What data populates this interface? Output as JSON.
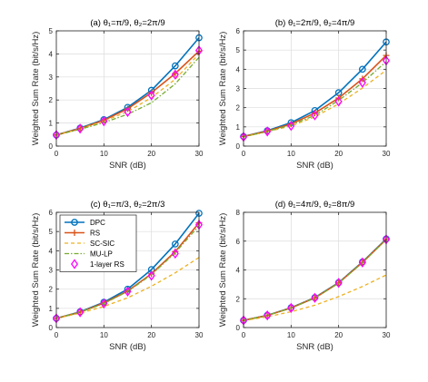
{
  "colors": {
    "dpc": "#0072BD",
    "rs": "#D95319",
    "sc_sic": "#EDB120",
    "mu_lp": "#77AC30",
    "one_layer_rs": "#FF00FF"
  },
  "legend": {
    "panel_index": 2,
    "placement": "top-left",
    "entries": [
      "DPC",
      "RS",
      "SC-SIC",
      "MU-LP",
      "1-layer RS"
    ]
  },
  "chart_data": [
    {
      "type": "line",
      "title": "(a) θ₁=π/9, θ₂=2π/9",
      "xlabel": "SNR (dB)",
      "ylabel": "Weighted Sum Rate (bit/s/Hz)",
      "xlim": [
        0,
        30
      ],
      "ylim": [
        0,
        5
      ],
      "xticks": [
        0,
        10,
        20,
        30
      ],
      "yticks": [
        0,
        1,
        2,
        3,
        4,
        5
      ],
      "grid": true,
      "x": [
        0,
        5,
        10,
        15,
        20,
        25,
        30
      ],
      "series": [
        {
          "name": "DPC",
          "values": [
            0.48,
            0.78,
            1.15,
            1.68,
            2.42,
            3.48,
            4.7
          ]
        },
        {
          "name": "RS",
          "values": [
            0.48,
            0.76,
            1.12,
            1.62,
            2.32,
            3.15,
            4.12
          ]
        },
        {
          "name": "SC-SIC",
          "values": [
            0.48,
            0.75,
            1.08,
            1.5,
            2.1,
            2.9,
            4.0
          ]
        },
        {
          "name": "MU-LP",
          "values": [
            0.48,
            0.73,
            1.02,
            1.38,
            1.88,
            2.7,
            3.85
          ]
        },
        {
          "name": "1-layer RS",
          "values": [
            0.48,
            0.76,
            1.08,
            1.48,
            2.2,
            3.1,
            4.15
          ]
        }
      ]
    },
    {
      "type": "line",
      "title": "(b) θ₁=2π/9, θ₂=4π/9",
      "xlabel": "SNR (dB)",
      "ylabel": "Weighted Sum Rate (bit/s/Hz)",
      "xlim": [
        0,
        30
      ],
      "ylim": [
        0,
        6
      ],
      "xticks": [
        0,
        10,
        20,
        30
      ],
      "yticks": [
        0,
        1,
        2,
        3,
        4,
        5,
        6
      ],
      "grid": true,
      "x": [
        0,
        5,
        10,
        15,
        20,
        25,
        30
      ],
      "series": [
        {
          "name": "DPC",
          "values": [
            0.5,
            0.8,
            1.22,
            1.85,
            2.78,
            4.0,
            5.42
          ]
        },
        {
          "name": "RS",
          "values": [
            0.5,
            0.78,
            1.15,
            1.72,
            2.5,
            3.5,
            4.72
          ]
        },
        {
          "name": "SC-SIC",
          "values": [
            0.48,
            0.75,
            1.05,
            1.52,
            2.2,
            3.02,
            3.95
          ]
        },
        {
          "name": "MU-LP",
          "values": [
            0.48,
            0.76,
            1.1,
            1.6,
            2.38,
            3.3,
            4.4
          ]
        },
        {
          "name": "1-layer RS",
          "values": [
            0.48,
            0.76,
            1.05,
            1.6,
            2.32,
            3.3,
            4.45
          ]
        }
      ]
    },
    {
      "type": "line",
      "title": "(c) θ₁=π/3, θ₂=2π/3",
      "xlabel": "SNR (dB)",
      "ylabel": "Weighted Sum Rate (bit/s/Hz)",
      "xlim": [
        0,
        30
      ],
      "ylim": [
        0,
        6
      ],
      "xticks": [
        0,
        10,
        20,
        30
      ],
      "yticks": [
        0,
        1,
        2,
        3,
        4,
        5,
        6
      ],
      "grid": true,
      "x": [
        0,
        5,
        10,
        15,
        20,
        25,
        30
      ],
      "series": [
        {
          "name": "DPC",
          "values": [
            0.48,
            0.82,
            1.32,
            2.0,
            3.02,
            4.35,
            5.95
          ]
        },
        {
          "name": "RS",
          "values": [
            0.48,
            0.8,
            1.28,
            1.9,
            2.8,
            3.95,
            5.45
          ]
        },
        {
          "name": "SC-SIC",
          "values": [
            0.48,
            0.75,
            1.1,
            1.55,
            2.15,
            2.85,
            3.65
          ]
        },
        {
          "name": "MU-LP",
          "values": [
            0.48,
            0.8,
            1.25,
            1.88,
            2.75,
            3.9,
            5.3
          ]
        },
        {
          "name": "1-layer RS",
          "values": [
            0.48,
            0.8,
            1.25,
            1.88,
            2.7,
            3.85,
            5.35
          ]
        }
      ]
    },
    {
      "type": "line",
      "title": "(d) θ₁=4π/9, θ₂=8π/9",
      "xlabel": "SNR (dB)",
      "ylabel": "Weighted Sum Rate (bit/s/Hz)",
      "xlim": [
        0,
        30
      ],
      "ylim": [
        0,
        8
      ],
      "xticks": [
        0,
        10,
        20,
        30
      ],
      "yticks": [
        0,
        2,
        4,
        6,
        8
      ],
      "grid": true,
      "x": [
        0,
        5,
        10,
        15,
        20,
        25,
        30
      ],
      "series": [
        {
          "name": "DPC",
          "values": [
            0.5,
            0.85,
            1.38,
            2.08,
            3.12,
            4.55,
            6.15
          ]
        },
        {
          "name": "RS",
          "values": [
            0.5,
            0.84,
            1.36,
            2.06,
            3.1,
            4.52,
            6.12
          ]
        },
        {
          "name": "SC-SIC",
          "values": [
            0.48,
            0.75,
            1.1,
            1.55,
            2.15,
            2.85,
            3.65
          ]
        },
        {
          "name": "MU-LP",
          "values": [
            0.5,
            0.84,
            1.35,
            2.05,
            3.08,
            4.5,
            6.1
          ]
        },
        {
          "name": "1-layer RS",
          "values": [
            0.5,
            0.84,
            1.36,
            2.06,
            3.1,
            4.52,
            6.12
          ]
        }
      ]
    }
  ]
}
